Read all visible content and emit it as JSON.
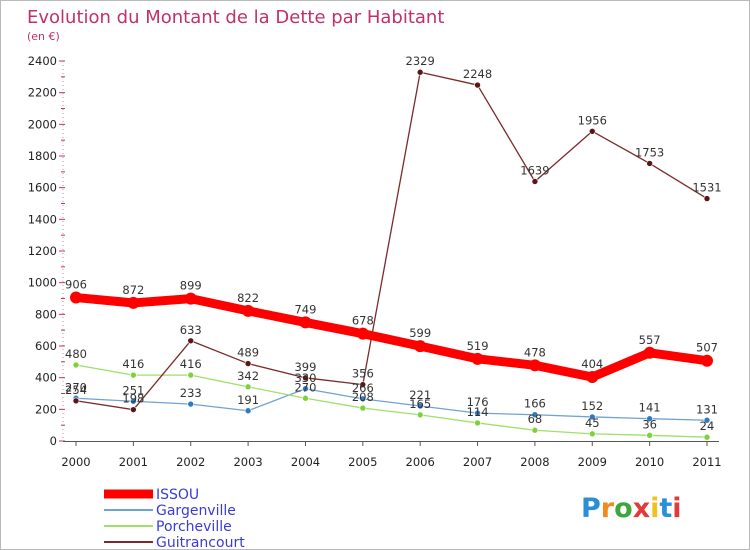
{
  "title": "Evolution du Montant de la Dette par Habitant",
  "subtitle": "(en €)",
  "logo": {
    "text": "Proxiti",
    "letter_colors": [
      "#2a8fd6",
      "#f08a1c",
      "#3aa83a",
      "#e03a3a",
      "#f2c21c",
      "#2a8fd6",
      "#e03a3a"
    ]
  },
  "chart_data": {
    "type": "line",
    "title": "Evolution du Montant de la Dette par Habitant",
    "subtitle": "(en €)",
    "xlabel": "",
    "ylabel": "",
    "x": [
      "2000",
      "2001",
      "2002",
      "2003",
      "2004",
      "2005",
      "2006",
      "2007",
      "2008",
      "2009",
      "2010",
      "2011"
    ],
    "ylim": [
      0,
      2400
    ],
    "yticks": [
      "0",
      "200",
      "400",
      "600",
      "800",
      "1000",
      "1200",
      "1400",
      "1600",
      "1800",
      "2000",
      "2200",
      "2400"
    ],
    "grid": false,
    "legend_position": "bottom-left",
    "series": [
      {
        "name": "ISSOU",
        "color": "#ff0000",
        "emphasis": true,
        "values": [
          906,
          872,
          899,
          822,
          749,
          678,
          599,
          519,
          478,
          404,
          557,
          507
        ],
        "labels": [
          "906",
          "872",
          "899",
          "822",
          "749",
          "678",
          "599",
          "519",
          "478",
          "404",
          "557",
          "507"
        ]
      },
      {
        "name": "Gargenville",
        "color": "#6fa3d0",
        "marker": "#2e7bc4",
        "values": [
          270,
          251,
          233,
          191,
          330,
          266,
          221,
          176,
          166,
          152,
          141,
          131
        ],
        "labels": [
          "270",
          "251",
          "233",
          "191",
          "330",
          "266",
          "221",
          "176",
          "166",
          "152",
          "141",
          "131"
        ]
      },
      {
        "name": "Porcheville",
        "color": "#9fe06a",
        "marker": "#7dd13a",
        "values": [
          480,
          416,
          416,
          342,
          270,
          208,
          165,
          114,
          68,
          45,
          36,
          24
        ],
        "labels": [
          "480",
          "416",
          "416",
          "342",
          "270",
          "208",
          "165",
          "114",
          "68",
          "45",
          "36",
          "24"
        ]
      },
      {
        "name": "Guitrancourt",
        "color": "#7a2a2a",
        "marker": "#5a1515",
        "values": [
          254,
          198,
          633,
          489,
          399,
          356,
          2329,
          2248,
          1639,
          1956,
          1753,
          1531
        ],
        "labels": [
          "254",
          "198",
          "633",
          "489",
          "399",
          "356",
          "2329",
          "2248",
          "1639",
          "1956",
          "1753",
          "1531"
        ]
      }
    ]
  }
}
